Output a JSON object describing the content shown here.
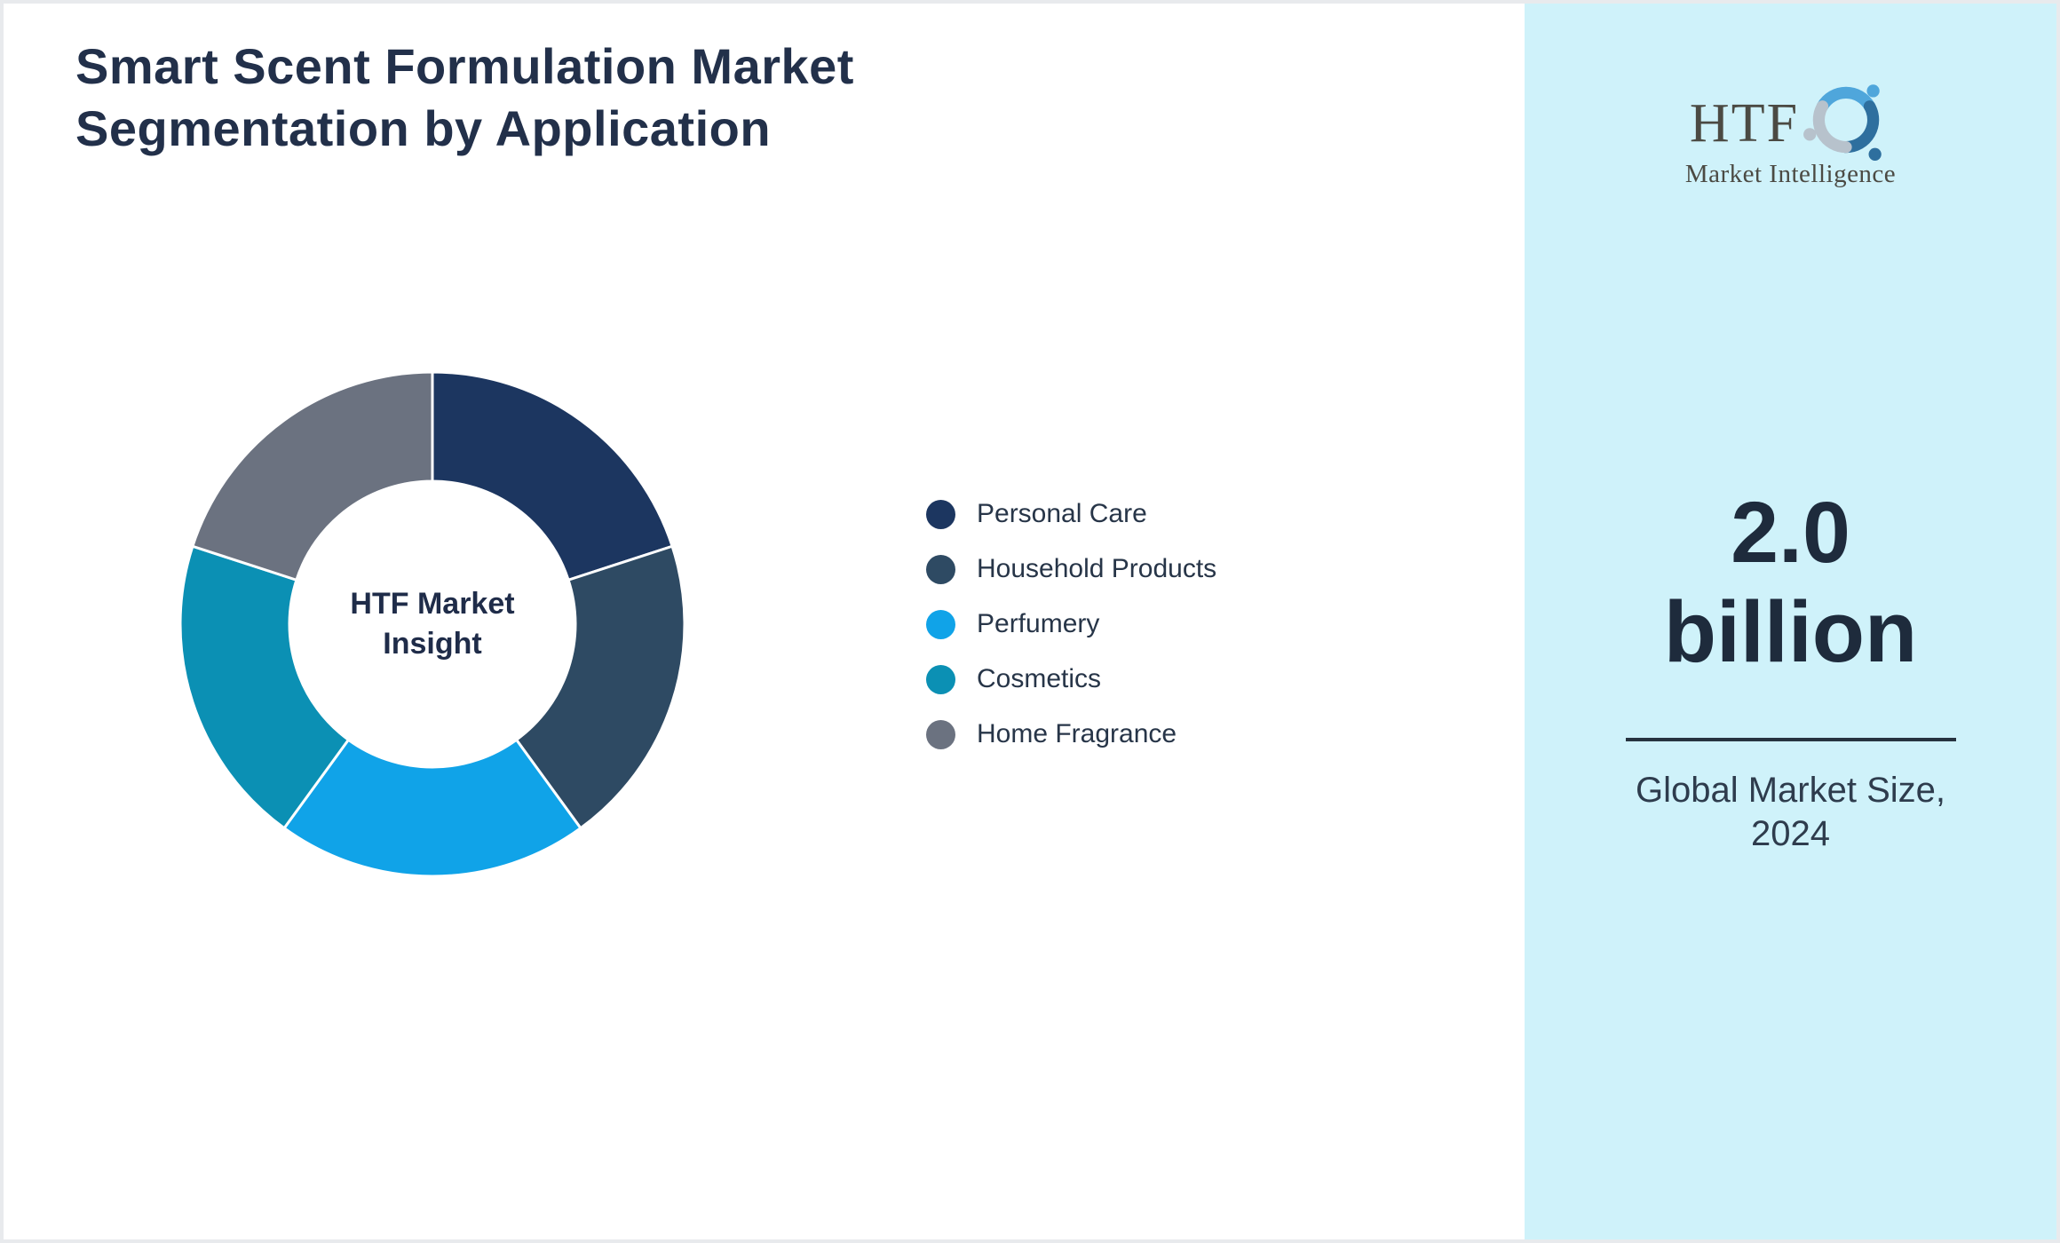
{
  "page": {
    "title_lines": [
      "Smart Scent Formulation Market",
      "Segmentation by Application"
    ]
  },
  "colors": {
    "border": "#e8eaed",
    "page_bg": "#ffffff",
    "sidebar_bg": "#cff2fa",
    "title": "#22304a",
    "dark": "#1e2b3c",
    "caption": "#2e3c4d",
    "legend_label": "#273548",
    "center_label": "#1f2c49",
    "logo_text": "#4b4a43",
    "divider": "#27333f"
  },
  "chart_data": {
    "type": "pie",
    "donut": true,
    "title": "Smart Scent Formulation Market Segmentation by Application",
    "categories": [
      "Personal Care",
      "Household Products",
      "Perfumery",
      "Cosmetics",
      "Home Fragrance"
    ],
    "values": [
      20,
      20,
      20,
      20,
      20
    ],
    "colors": [
      "#1c3660",
      "#2e4a63",
      "#10a3e8",
      "#0b90b4",
      "#6b7280"
    ],
    "center_label_lines": [
      "HTF Market",
      "Insight"
    ],
    "legend_position": "right",
    "start_angle_deg": 0,
    "clockwise": true,
    "segment_gap_color": "#ffffff"
  },
  "sidebar": {
    "logo": {
      "text": "HTF",
      "subtext": "Market Intelligence",
      "mark_colors": [
        "#4fa6db",
        "#2e6f9e",
        "#b7c2cc"
      ]
    },
    "market_size": {
      "value_lines": [
        "2.0",
        "billion"
      ],
      "caption_lines": [
        "Global Market Size,",
        "2024"
      ]
    }
  }
}
